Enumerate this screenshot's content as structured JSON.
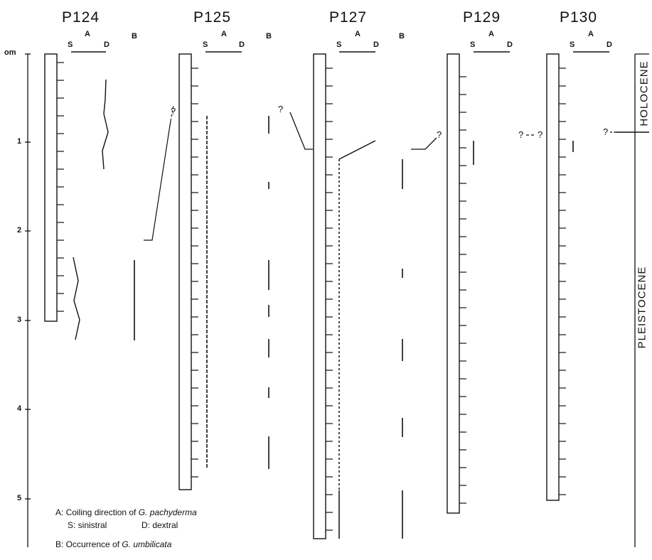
{
  "depth_axis": {
    "unit_label": "om",
    "labels": [
      "1",
      "2",
      "3",
      "4",
      "5"
    ]
  },
  "cores": [
    {
      "id": "P124",
      "a_label": "A",
      "s_label": "S",
      "d_label": "D",
      "b_label": "B"
    },
    {
      "id": "P125",
      "a_label": "A",
      "s_label": "S",
      "d_label": "D",
      "b_label": "B"
    },
    {
      "id": "P127",
      "a_label": "A",
      "s_label": "S",
      "d_label": "D",
      "b_label": "B"
    },
    {
      "id": "P129",
      "a_label": "A",
      "s_label": "S",
      "d_label": "D"
    },
    {
      "id": "P130",
      "a_label": "A",
      "s_label": "S",
      "d_label": "D"
    }
  ],
  "unknown_mark": "?",
  "epochs": {
    "upper": "HOLOCENE",
    "lower": "PLEISTOCENE"
  },
  "legend": {
    "a_prefix": "A: Coiling direction of ",
    "a_species": "G. pachyderma",
    "s_text": "S: sinistral",
    "d_text": "D: dextral",
    "b_prefix": "B: Occurrence of ",
    "b_species": "G. umbilicata"
  }
}
